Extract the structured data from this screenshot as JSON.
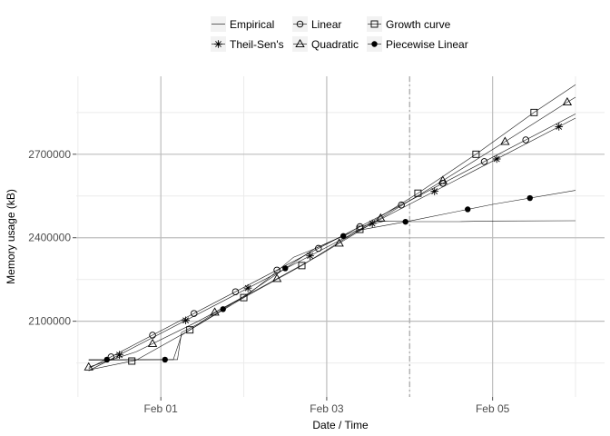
{
  "chart_data": {
    "type": "line",
    "title": "",
    "xlabel": "Date / Time",
    "ylabel": "Memory usage (kB)",
    "x_unit": "days",
    "x_ticks": [
      {
        "x": 1,
        "label": "Feb 01"
      },
      {
        "x": 3,
        "label": "Feb 03"
      },
      {
        "x": 5,
        "label": "Feb 05"
      }
    ],
    "y_ticks": [
      {
        "y": 2100000,
        "label": "2100000"
      },
      {
        "y": 2400000,
        "label": "2400000"
      },
      {
        "y": 2700000,
        "label": "2700000"
      }
    ],
    "xlim": [
      -0.02,
      6.35
    ],
    "ylim": [
      1828000,
      2980000
    ],
    "cutoff_x": 4.0,
    "legend_position": "top",
    "series": [
      {
        "name": "Empirical",
        "marker": "none",
        "points": [
          [
            0.13,
            1960000
          ],
          [
            1.0,
            1962000
          ],
          [
            1.2,
            1962000
          ],
          [
            1.25,
            2060000
          ],
          [
            1.45,
            2090000
          ],
          [
            1.7,
            2140000
          ],
          [
            2.0,
            2185000
          ],
          [
            2.3,
            2255000
          ],
          [
            2.6,
            2330000
          ],
          [
            2.85,
            2360000
          ],
          [
            3.15,
            2400000
          ],
          [
            3.4,
            2440000
          ],
          [
            3.7,
            2460000
          ],
          [
            4.0,
            2458000
          ],
          [
            4.6,
            2458000
          ],
          [
            5.0,
            2460000
          ],
          [
            6.0,
            2461000
          ]
        ]
      },
      {
        "name": "Theil-Sen's",
        "marker": "asterisk",
        "points": [
          [
            0.13,
            1922000
          ],
          [
            6.0,
            2830000
          ]
        ],
        "marker_x": [
          0.5,
          1.3,
          2.05,
          2.8,
          3.55,
          4.3,
          5.05,
          5.8
        ]
      },
      {
        "name": "Linear",
        "marker": "circle",
        "points": [
          [
            0.13,
            1930000
          ],
          [
            6.0,
            2845000
          ]
        ],
        "marker_x": [
          0.4,
          0.9,
          1.4,
          1.9,
          2.4,
          2.9,
          3.4,
          3.9,
          4.4,
          4.9,
          5.4
        ]
      },
      {
        "name": "Quadratic",
        "marker": "triangle",
        "points": [
          [
            0.13,
            1935000
          ],
          [
            0.7,
            1990000
          ],
          [
            1.45,
            2100000
          ],
          [
            2.2,
            2220000
          ],
          [
            2.9,
            2335000
          ],
          [
            3.65,
            2470000
          ],
          [
            4.4,
            2605000
          ],
          [
            5.15,
            2745000
          ],
          [
            5.9,
            2887000
          ],
          [
            6.0,
            2905000
          ]
        ],
        "marker_x": [
          0.13,
          0.9,
          1.65,
          2.4,
          3.15,
          3.65,
          4.4,
          5.15,
          5.9
        ]
      },
      {
        "name": "Growth curve",
        "marker": "square",
        "points": [
          [
            0.13,
            1925000
          ],
          [
            0.7,
            1960000
          ],
          [
            1.3,
            2060000
          ],
          [
            2.0,
            2185000
          ],
          [
            2.7,
            2300000
          ],
          [
            3.4,
            2430000
          ],
          [
            4.1,
            2560000
          ],
          [
            4.8,
            2700000
          ],
          [
            5.5,
            2850000
          ],
          [
            6.0,
            2950000
          ]
        ],
        "marker_x": [
          0.65,
          1.35,
          2.0,
          2.7,
          3.4,
          4.1,
          4.8,
          5.5
        ]
      },
      {
        "name": "Piecewise Linear",
        "marker": "filled-circle",
        "points": [
          [
            0.13,
            1962000
          ],
          [
            1.0,
            1962000
          ],
          [
            1.15,
            1962000
          ],
          [
            1.25,
            2050000
          ],
          [
            2.0,
            2190000
          ],
          [
            2.85,
            2360000
          ],
          [
            3.15,
            2400000
          ],
          [
            3.35,
            2425000
          ],
          [
            4.0,
            2460000
          ],
          [
            5.0,
            2520000
          ],
          [
            6.0,
            2570000
          ]
        ],
        "marker_x": [
          0.35,
          1.05,
          1.75,
          2.5,
          3.2,
          3.95,
          4.7,
          5.45
        ]
      }
    ]
  }
}
